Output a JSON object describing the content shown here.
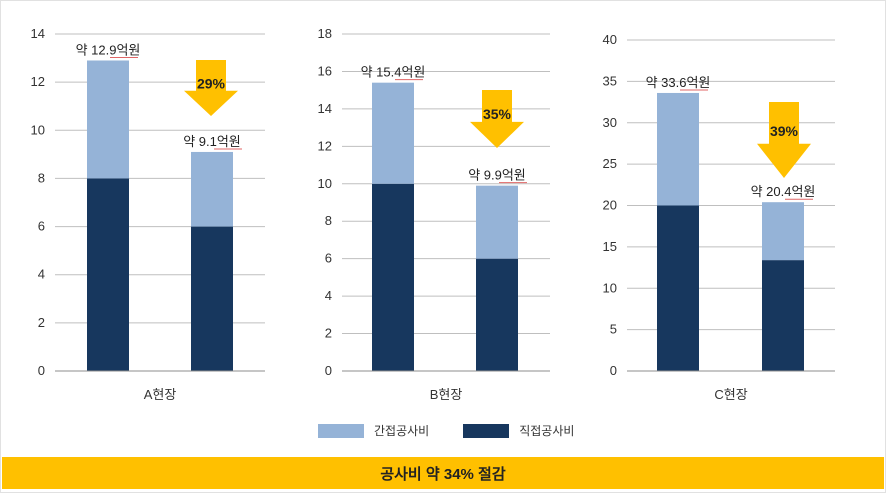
{
  "colors": {
    "indirect": "#95b3d7",
    "direct": "#17375e",
    "arrow": "#ffc000",
    "banner": "#ffc000",
    "grid": "#bfbfbf",
    "underline": "#e06666"
  },
  "legend": {
    "indirect_label": "간접공사비",
    "direct_label": "직접공사비"
  },
  "banner": {
    "text": "공사비 약 34% 절감"
  },
  "chart_data": [
    {
      "type": "bar",
      "stacked": true,
      "xlabel": "A현장",
      "ylim": [
        0,
        14
      ],
      "yticks": [
        0,
        2,
        4,
        6,
        8,
        10,
        12,
        14
      ],
      "grid": true,
      "series": [
        {
          "name": "직접공사비",
          "values": [
            8,
            6
          ]
        },
        {
          "name": "간접공사비",
          "values": [
            4.9,
            3.1
          ]
        }
      ],
      "total_labels": [
        "약 12.9억원",
        "약 9.1억원"
      ],
      "reduction_label": "29%"
    },
    {
      "type": "bar",
      "stacked": true,
      "xlabel": "B현장",
      "ylim": [
        0,
        18
      ],
      "yticks": [
        0,
        2,
        4,
        6,
        8,
        10,
        12,
        14,
        16,
        18
      ],
      "grid": true,
      "series": [
        {
          "name": "직접공사비",
          "values": [
            10,
            6
          ]
        },
        {
          "name": "간접공사비",
          "values": [
            5.4,
            3.9
          ]
        }
      ],
      "total_labels": [
        "약 15.4억원",
        "약 9.9억원"
      ],
      "reduction_label": "35%"
    },
    {
      "type": "bar",
      "stacked": true,
      "xlabel": "C현장",
      "ylim": [
        0,
        40
      ],
      "yticks": [
        0,
        5,
        10,
        15,
        20,
        25,
        30,
        35,
        40
      ],
      "grid": true,
      "series": [
        {
          "name": "직접공사비",
          "values": [
            20,
            13.4
          ]
        },
        {
          "name": "간접공사비",
          "values": [
            13.6,
            7.0
          ]
        }
      ],
      "total_labels": [
        "약 33.6억원",
        "약 20.4억원"
      ],
      "reduction_label": "39%"
    }
  ]
}
